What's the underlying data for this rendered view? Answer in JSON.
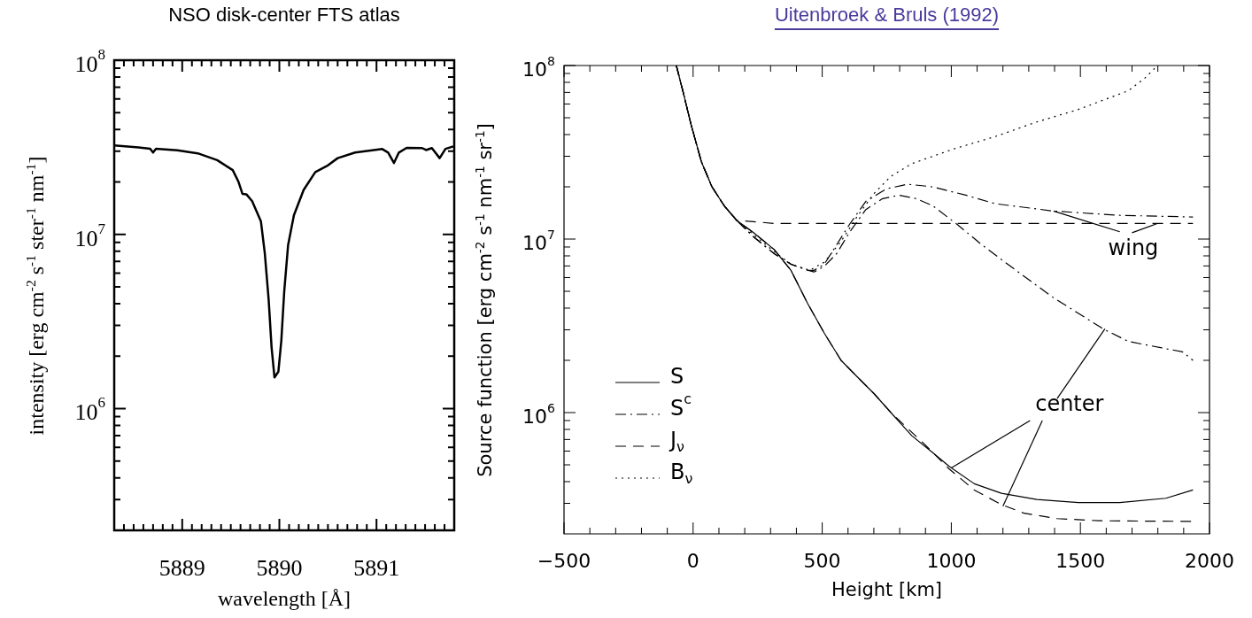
{
  "chart_data": [
    {
      "type": "line",
      "title": "NSO disk-center FTS atlas",
      "xlabel": "wavelength [Å]",
      "ylabel": "intensity [erg cm$^{-2}$ s$^{-1}$ ster$^{-1}$ nm$^{-1}$]",
      "log": "y",
      "color": "#000000",
      "x": [
        5888.3,
        5888.55,
        5888.67,
        5888.7,
        5888.73,
        5888.95,
        5889.16,
        5889.36,
        5889.52,
        5889.58,
        5889.62,
        5889.66,
        5889.72,
        5889.81,
        5889.85,
        5889.89,
        5889.92,
        5889.95,
        5889.99,
        5890.02,
        5890.05,
        5890.09,
        5890.15,
        5890.25,
        5890.37,
        5890.49,
        5890.6,
        5890.78,
        5891.06,
        5891.12,
        5891.18,
        5891.23,
        5891.31,
        5891.47,
        5891.51,
        5891.57,
        5891.65,
        5891.71,
        5891.79
      ],
      "values": [
        32400000.0,
        31600000.0,
        31000000.0,
        29500000.0,
        31000000.0,
        30400000.0,
        29200000.0,
        26700000.0,
        23400000.0,
        20000000.0,
        17100000.0,
        17000000.0,
        15500000.0,
        11900000.0,
        7800000.0,
        4200000.0,
        2240000.0,
        1510000.0,
        1630000.0,
        2450000.0,
        4700000.0,
        8700000.0,
        12900000.0,
        18000000.0,
        22800000.0,
        24700000.0,
        27400000.0,
        29500000.0,
        30900000.0,
        29500000.0,
        25700000.0,
        29500000.0,
        31400000.0,
        31300000.0,
        30500000.0,
        31300000.0,
        27400000.0,
        31000000.0,
        32000000.0
      ],
      "xlim": [
        5888.3,
        5891.8
      ],
      "xticks": [
        {
          "value": 5888.4,
          "label": null
        },
        {
          "value": 5888.5,
          "label": null
        },
        {
          "value": 5888.6,
          "label": null
        },
        {
          "value": 5888.7,
          "label": null
        },
        {
          "value": 5888.8,
          "label": null
        },
        {
          "value": 5888.9,
          "label": null
        },
        5889,
        {
          "value": 5889.1,
          "label": null
        },
        {
          "value": 5889.2,
          "label": null
        },
        {
          "value": 5889.3,
          "label": null
        },
        {
          "value": 5889.4,
          "label": null
        },
        {
          "value": 5889.5,
          "label": null
        },
        {
          "value": 5889.6,
          "label": null
        },
        {
          "value": 5889.7,
          "label": null
        },
        {
          "value": 5889.8,
          "label": null
        },
        {
          "value": 5889.9,
          "label": null
        },
        5890,
        {
          "value": 5890.1,
          "label": null
        },
        {
          "value": 5890.2,
          "label": null
        },
        {
          "value": 5890.3,
          "label": null
        },
        {
          "value": 5890.4,
          "label": null
        },
        {
          "value": 5890.5,
          "label": null
        },
        {
          "value": 5890.6,
          "label": null
        },
        {
          "value": 5890.7,
          "label": null
        },
        {
          "value": 5890.8,
          "label": null
        },
        {
          "value": 5890.9,
          "label": null
        },
        5891,
        {
          "value": 5891.1,
          "label": null
        },
        {
          "value": 5891.2,
          "label": null
        },
        {
          "value": 5891.3,
          "label": null
        },
        {
          "value": 5891.4,
          "label": null
        },
        {
          "value": 5891.5,
          "label": null
        },
        {
          "value": 5891.6,
          "label": null
        },
        {
          "value": 5891.7,
          "label": null
        }
      ],
      "ylim": [
        200000.0,
        100000000.0
      ],
      "yticks": [
        {
          "value": 300000.0,
          "label": null
        },
        {
          "value": 400000.0,
          "label": null
        },
        {
          "value": 500000.0,
          "label": null
        },
        {
          "value": 600000.0,
          "label": null
        },
        {
          "value": 700000.0,
          "label": null
        },
        {
          "value": 800000.0,
          "label": null
        },
        {
          "value": 900000.0,
          "label": null
        },
        {
          "value": 1000000.0,
          "label": "10$^{6}$"
        },
        {
          "value": 2000000.0,
          "label": null
        },
        {
          "value": 3000000.0,
          "label": null
        },
        {
          "value": 4000000.0,
          "label": null
        },
        {
          "value": 5000000.0,
          "label": null
        },
        {
          "value": 6000000.0,
          "label": null
        },
        {
          "value": 7000000.0,
          "label": null
        },
        {
          "value": 8000000.0,
          "label": null
        },
        {
          "value": 9000000.0,
          "label": null
        },
        {
          "value": 10000000.0,
          "label": "10$^{7}$"
        },
        {
          "value": 20000000.0,
          "label": null
        },
        {
          "value": 30000000.0,
          "label": null
        },
        {
          "value": 40000000.0,
          "label": null
        },
        {
          "value": 50000000.0,
          "label": null
        },
        {
          "value": 60000000.0,
          "label": null
        },
        {
          "value": 70000000.0,
          "label": null
        },
        {
          "value": 80000000.0,
          "label": null
        },
        {
          "value": 90000000.0,
          "label": null
        },
        {
          "value": 100000000.0,
          "label": "10$^{8}$"
        }
      ]
    },
    {
      "type": "line",
      "title": "Uitenbroek & Bruls (1992)",
      "xlabel": "Height [km]",
      "ylabel": "Source function [erg cm$^{-2}$ s$^{-1}$ nm$^{-1}$ sr$^{-1}$]",
      "log": "y",
      "legend": "bottom left",
      "series": [
        {
          "name": "S",
          "color": "#000000",
          "line_style": "solid",
          "x": [
            -65,
            -40,
            -8,
            32,
            73,
            121,
            169,
            234,
            314,
            379,
            444,
            508,
            573,
            637,
            702,
            766,
            847,
            927,
            992,
            1089,
            1194,
            1331,
            1492,
            1653,
            1831,
            1936
          ],
          "values": [
            100000000.0,
            71600000.0,
            45700000.0,
            27900000.0,
            20000000.0,
            15500000.0,
            12800000.0,
            10900000.0,
            8700000.0,
            6600000.0,
            4240000.0,
            2870000.0,
            2000000.0,
            1600000.0,
            1280000.0,
            1000000.0,
            736000.0,
            589000.0,
            490000.0,
            389000.0,
            343000.0,
            316000.0,
            303000.0,
            303000.0,
            321000.0,
            358000.0
          ]
        },
        {
          "name": "S$^{c}$",
          "color": "#000000",
          "line_style": "dashdot",
          "x": [
            -65,
            -40,
            -8,
            32,
            73,
            121,
            169,
            234,
            314,
            379,
            444,
            468,
            508,
            556,
            605,
            669,
            734,
            798,
            863,
            927,
            1024,
            1121,
            1250,
            1395,
            1589,
            1686,
            1815,
            1895,
            1936
          ],
          "values": [
            100000000.0,
            71600000.0,
            45700000.0,
            27900000.0,
            20000000.0,
            15500000.0,
            12800000.0,
            10300000.0,
            8240000.0,
            7160000.0,
            6610000.0,
            6460000.0,
            6970000.0,
            8240000.0,
            10900000.0,
            14800000.0,
            17100000.0,
            17900000.0,
            17100000.0,
            15600000.0,
            12100000.0,
            9200000.0,
            6610000.0,
            4600000.0,
            3030000.0,
            2570000.0,
            2360000.0,
            2240000.0,
            2000000.0
          ]
        },
        {
          "name": "J$_{ν}$",
          "color": "#000000",
          "line_style": "dashed",
          "x": [
            -65,
            -40,
            -8,
            32,
            73,
            121,
            169,
            234,
            314,
            379,
            444,
            508,
            573,
            637,
            702,
            766,
            895,
            992,
            1089,
            1194,
            1282,
            1411,
            1573,
            1936
          ],
          "values": [
            100000000.0,
            71600000.0,
            45700000.0,
            27900000.0,
            20000000.0,
            15500000.0,
            12800000.0,
            10900000.0,
            8700000.0,
            6600000.0,
            4240000.0,
            2870000.0,
            2000000.0,
            1600000.0,
            1280000.0,
            1000000.0,
            660000.0,
            473000.0,
            358000.0,
            295000.0,
            263000.0,
            245000.0,
            238000.0,
            236000.0
          ]
        },
        {
          "name": "B$_{ν}$",
          "color": "#000000",
          "line_style": "dotted",
          "x": [
            -65,
            -40,
            -8,
            32,
            73,
            121,
            169,
            234,
            314,
            379,
            452,
            508,
            573,
            637,
            702,
            766,
            847,
            1008,
            1169,
            1331,
            1492,
            1686,
            1750,
            1799
          ],
          "values": [
            100000000.0,
            71600000.0,
            45700000.0,
            27900000.0,
            20000000.0,
            15500000.0,
            12800000.0,
            10600000.0,
            8470000.0,
            7160000.0,
            6610000.0,
            7360000.0,
            9700000.0,
            13600000.0,
            18400000.0,
            23000000.0,
            27200000.0,
            33000000.0,
            38900000.0,
            47300000.0,
            55800000.0,
            71600000.0,
            84700000.0,
            100000000.0
          ]
        },
        {
          "color": "#000000",
          "line_style": "dashdot",
          "x": [
            -65,
            -40,
            -8,
            32,
            73,
            121,
            169,
            234,
            314,
            379,
            444,
            468,
            508,
            605,
            669,
            750,
            831,
            927,
            1056,
            1169,
            1395,
            1653,
            1936
          ],
          "values": [
            100000000.0,
            71600000.0,
            45700000.0,
            27900000.0,
            20000000.0,
            15500000.0,
            12800000.0,
            10300000.0,
            8240000.0,
            7160000.0,
            6610000.0,
            6600000.0,
            7160000.0,
            12100000.0,
            16500000.0,
            19500000.0,
            20700000.0,
            20000000.0,
            17900000.0,
            16000000.0,
            14500000.0,
            13700000.0,
            13400000.0
          ]
        },
        {
          "color": "#000000",
          "line_style": "dashed",
          "x": [
            -65,
            -40,
            -8,
            32,
            73,
            121,
            169,
            234,
            314,
            1936
          ],
          "values": [
            100000000.0,
            71600000.0,
            45700000.0,
            27900000.0,
            20000000.0,
            15500000.0,
            12800000.0,
            12600000.0,
            12300000.0,
            12300000.0
          ]
        }
      ],
      "annotations": [
        {
          "text": "wing",
          "x": 1396,
          "y": 14500000.0
        },
        {
          "text": "center",
          "x": 1000,
          "y": 480000.0
        }
      ],
      "xlim": [
        -500,
        2000
      ],
      "xticks": [
        {
          "value": -500,
          "label": "−500"
        },
        {
          "value": -400,
          "label": null
        },
        {
          "value": -300,
          "label": null
        },
        {
          "value": -200,
          "label": null
        },
        {
          "value": -100,
          "label": null
        },
        0,
        {
          "value": 100,
          "label": null
        },
        {
          "value": 200,
          "label": null
        },
        {
          "value": 300,
          "label": null
        },
        {
          "value": 400,
          "label": null
        },
        500,
        {
          "value": 600,
          "label": null
        },
        {
          "value": 700,
          "label": null
        },
        {
          "value": 800,
          "label": null
        },
        {
          "value": 900,
          "label": null
        },
        1000,
        {
          "value": 1100,
          "label": null
        },
        {
          "value": 1200,
          "label": null
        },
        {
          "value": 1300,
          "label": null
        },
        {
          "value": 1400,
          "label": null
        },
        1500,
        {
          "value": 1600,
          "label": null
        },
        {
          "value": 1700,
          "label": null
        },
        {
          "value": 1800,
          "label": null
        },
        {
          "value": 1900,
          "label": null
        },
        2000
      ],
      "ylim": [
        200000.0,
        100000000.0
      ],
      "yticks": [
        {
          "value": 300000.0,
          "label": null
        },
        {
          "value": 400000.0,
          "label": null
        },
        {
          "value": 500000.0,
          "label": null
        },
        {
          "value": 600000.0,
          "label": null
        },
        {
          "value": 700000.0,
          "label": null
        },
        {
          "value": 800000.0,
          "label": null
        },
        {
          "value": 900000.0,
          "label": null
        },
        {
          "value": 1000000.0,
          "label": "10$^{6}$"
        },
        {
          "value": 2000000.0,
          "label": null
        },
        {
          "value": 3000000.0,
          "label": null
        },
        {
          "value": 4000000.0,
          "label": null
        },
        {
          "value": 5000000.0,
          "label": null
        },
        {
          "value": 6000000.0,
          "label": null
        },
        {
          "value": 7000000.0,
          "label": null
        },
        {
          "value": 8000000.0,
          "label": null
        },
        {
          "value": 9000000.0,
          "label": null
        },
        {
          "value": 10000000.0,
          "label": "10$^{7}$"
        },
        {
          "value": 20000000.0,
          "label": null
        },
        {
          "value": 30000000.0,
          "label": null
        },
        {
          "value": 40000000.0,
          "label": null
        },
        {
          "value": 50000000.0,
          "label": null
        },
        {
          "value": 60000000.0,
          "label": null
        },
        {
          "value": 70000000.0,
          "label": null
        },
        {
          "value": 80000000.0,
          "label": null
        },
        {
          "value": 90000000.0,
          "label": null
        },
        {
          "value": 100000000.0,
          "label": "10$^{8}$"
        }
      ]
    }
  ]
}
